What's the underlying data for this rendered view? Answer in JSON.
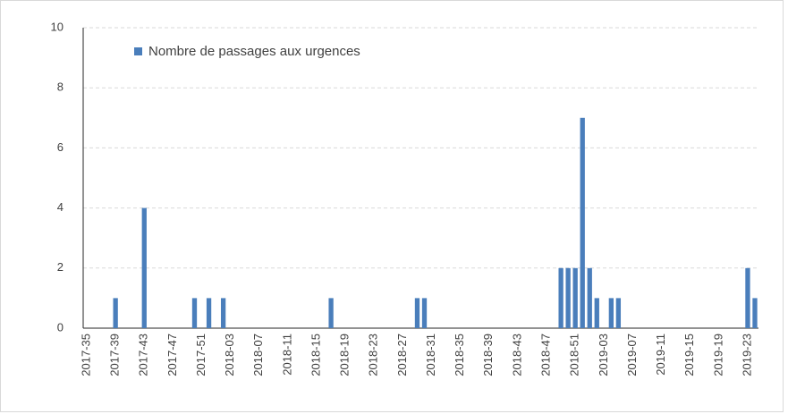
{
  "chart_data": {
    "type": "bar",
    "categories": [
      "2017-35",
      null,
      null,
      null,
      "2017-39",
      null,
      null,
      null,
      "2017-43",
      null,
      null,
      null,
      "2017-47",
      null,
      null,
      null,
      "2017-51",
      null,
      null,
      null,
      "2018-03",
      null,
      null,
      null,
      "2018-07",
      null,
      null,
      null,
      "2018-11",
      null,
      null,
      null,
      "2018-15",
      null,
      null,
      null,
      "2018-19",
      null,
      null,
      null,
      "2018-23",
      null,
      null,
      null,
      "2018-27",
      null,
      null,
      null,
      "2018-31",
      null,
      null,
      null,
      "2018-35",
      null,
      null,
      null,
      "2018-39",
      null,
      null,
      null,
      "2018-43",
      null,
      null,
      null,
      "2018-47",
      null,
      null,
      null,
      "2018-51",
      null,
      null,
      null,
      "2019-03",
      null,
      null,
      null,
      "2019-07",
      null,
      null,
      null,
      "2019-11",
      null,
      null,
      null,
      "2019-15",
      null,
      null,
      null,
      "2019-19",
      null,
      null,
      null,
      "2019-23",
      null
    ],
    "series": [
      {
        "name": "Nombre de passages aux urgences",
        "color": "#4a7ebb",
        "values": [
          0,
          0,
          0,
          0,
          1,
          0,
          0,
          0,
          4,
          0,
          0,
          0,
          0,
          0,
          0,
          1,
          0,
          1,
          0,
          1,
          0,
          0,
          0,
          0,
          0,
          0,
          0,
          0,
          0,
          0,
          0,
          0,
          0,
          0,
          1,
          0,
          0,
          0,
          0,
          0,
          0,
          0,
          0,
          0,
          0,
          0,
          1,
          1,
          0,
          0,
          0,
          0,
          0,
          0,
          0,
          0,
          0,
          0,
          0,
          0,
          0,
          0,
          0,
          0,
          0,
          0,
          2,
          2,
          2,
          7,
          2,
          1,
          0,
          1,
          1,
          0,
          0,
          0,
          0,
          0,
          0,
          0,
          0,
          0,
          0,
          0,
          0,
          0,
          0,
          0,
          0,
          0,
          2,
          1
        ]
      }
    ],
    "ylim": [
      0,
      10
    ],
    "yticks": [
      0,
      2,
      4,
      6,
      8,
      10
    ],
    "grid": true,
    "legend": "top-left"
  }
}
